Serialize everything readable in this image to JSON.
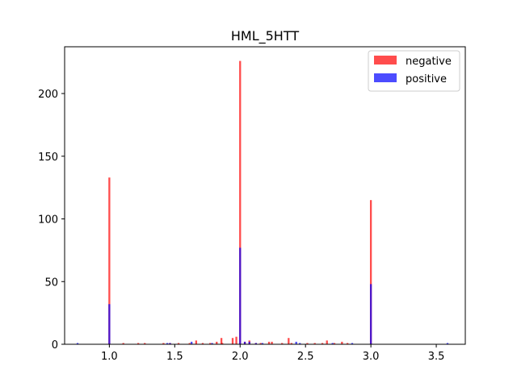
{
  "chart_data": {
    "type": "bar",
    "title": "HML_5HTT",
    "xlabel": "",
    "ylabel": "",
    "xlim": [
      0.658,
      3.722
    ],
    "ylim": [
      0,
      237.3
    ],
    "xticks": [
      1.0,
      1.5,
      2.0,
      2.5,
      3.0,
      3.5
    ],
    "xtick_labels": [
      "1.0",
      "1.5",
      "2.0",
      "2.5",
      "3.0",
      "3.5"
    ],
    "yticks": [
      0,
      50,
      100,
      150,
      200
    ],
    "ytick_labels": [
      "0",
      "50",
      "100",
      "150",
      "200"
    ],
    "bin_width": 0.0143,
    "legend_position": "top-right",
    "grid": false,
    "series": [
      {
        "name": "negative",
        "color": "#ff0000",
        "alpha": 0.7,
        "x": [
          1.0,
          1.107,
          1.221,
          1.271,
          1.414,
          1.464,
          1.529,
          1.614,
          1.664,
          1.714,
          1.771,
          1.821,
          1.857,
          1.864,
          1.943,
          1.971,
          2.0,
          2.036,
          2.071,
          2.121,
          2.157,
          2.221,
          2.243,
          2.321,
          2.371,
          2.393,
          2.514,
          2.571,
          2.629,
          2.664,
          2.721,
          2.779,
          2.821,
          3.0
        ],
        "values": [
          133,
          1,
          1,
          1,
          1,
          1,
          1,
          1,
          3,
          1,
          1,
          2,
          5,
          1,
          5,
          6,
          226,
          2,
          3,
          1,
          1,
          2,
          2,
          1,
          5,
          1,
          1,
          1,
          1,
          3,
          1,
          2,
          1,
          115
        ]
      },
      {
        "name": "positive",
        "color": "#0000ff",
        "alpha": 0.7,
        "x": [
          0.757,
          1.0,
          1.443,
          1.464,
          1.629,
          1.786,
          2.0,
          2.036,
          2.071,
          2.121,
          2.171,
          2.429,
          2.457,
          2.707,
          2.857,
          3.0,
          3.586
        ],
        "values": [
          1,
          32,
          1,
          1,
          2,
          1,
          77,
          2,
          2,
          1,
          1,
          2,
          1,
          1,
          1,
          48,
          1
        ]
      }
    ]
  }
}
